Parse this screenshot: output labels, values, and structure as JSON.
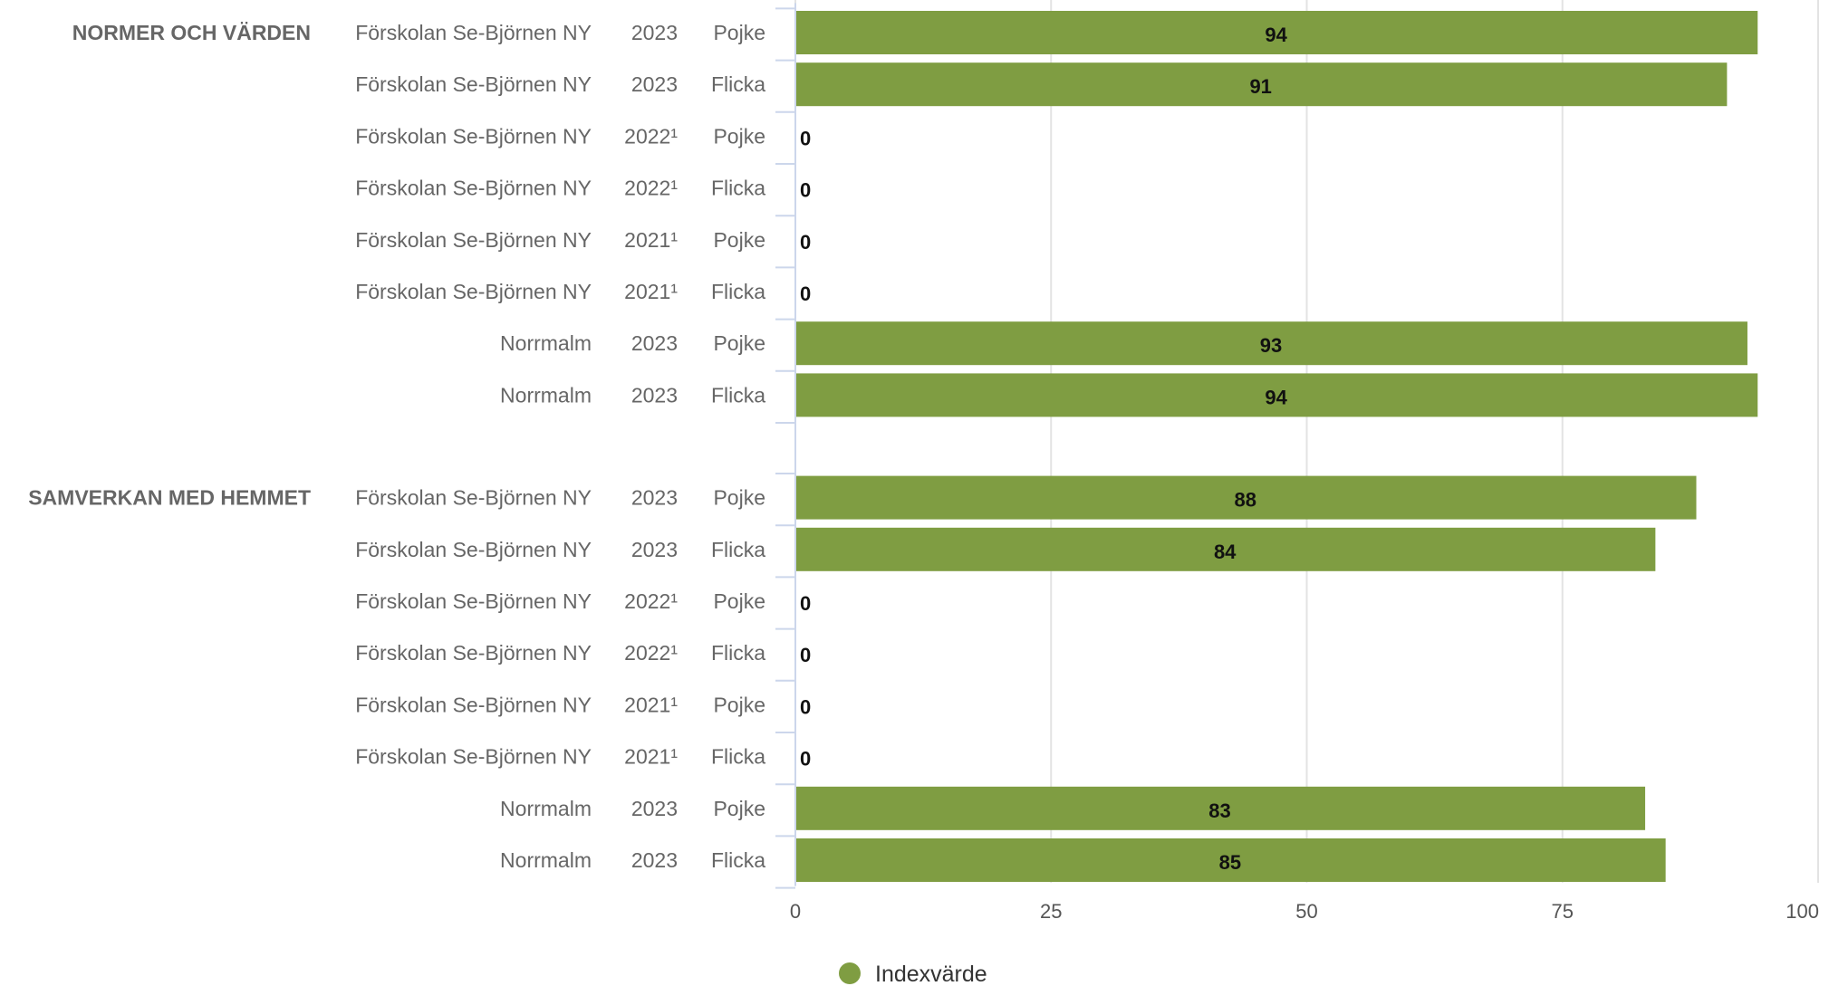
{
  "chart_data": {
    "type": "bar",
    "orientation": "horizontal",
    "xlim": [
      0,
      100
    ],
    "x_ticks": [
      0,
      25,
      50,
      75,
      100
    ],
    "grid": true,
    "legend_position": "bottom",
    "series": [
      {
        "name": "Indexvärde",
        "color": "#7f9d42"
      }
    ],
    "groups": [
      {
        "label": "NORMER OCH VÄRDEN",
        "rows": [
          {
            "unit": "Förskolan Se-Björnen NY",
            "year": "2023",
            "gender": "Pojke",
            "value": 94
          },
          {
            "unit": "Förskolan Se-Björnen NY",
            "year": "2023",
            "gender": "Flicka",
            "value": 91
          },
          {
            "unit": "Förskolan Se-Björnen NY",
            "year": "2022¹",
            "gender": "Pojke",
            "value": 0
          },
          {
            "unit": "Förskolan Se-Björnen NY",
            "year": "2022¹",
            "gender": "Flicka",
            "value": 0
          },
          {
            "unit": "Förskolan Se-Björnen NY",
            "year": "2021¹",
            "gender": "Pojke",
            "value": 0
          },
          {
            "unit": "Förskolan Se-Björnen NY",
            "year": "2021¹",
            "gender": "Flicka",
            "value": 0
          },
          {
            "unit": "Norrmalm",
            "year": "2023",
            "gender": "Pojke",
            "value": 93
          },
          {
            "unit": "Norrmalm",
            "year": "2023",
            "gender": "Flicka",
            "value": 94
          }
        ]
      },
      {
        "label": "SAMVERKAN MED HEMMET",
        "rows": [
          {
            "unit": "Förskolan Se-Björnen NY",
            "year": "2023",
            "gender": "Pojke",
            "value": 88
          },
          {
            "unit": "Förskolan Se-Björnen NY",
            "year": "2023",
            "gender": "Flicka",
            "value": 84
          },
          {
            "unit": "Förskolan Se-Björnen NY",
            "year": "2022¹",
            "gender": "Pojke",
            "value": 0
          },
          {
            "unit": "Förskolan Se-Björnen NY",
            "year": "2022¹",
            "gender": "Flicka",
            "value": 0
          },
          {
            "unit": "Förskolan Se-Björnen NY",
            "year": "2021¹",
            "gender": "Pojke",
            "value": 0
          },
          {
            "unit": "Förskolan Se-Björnen NY",
            "year": "2021¹",
            "gender": "Flicka",
            "value": 0
          },
          {
            "unit": "Norrmalm",
            "year": "2023",
            "gender": "Pojke",
            "value": 83
          },
          {
            "unit": "Norrmalm",
            "year": "2023",
            "gender": "Flicka",
            "value": 85
          }
        ]
      }
    ]
  }
}
